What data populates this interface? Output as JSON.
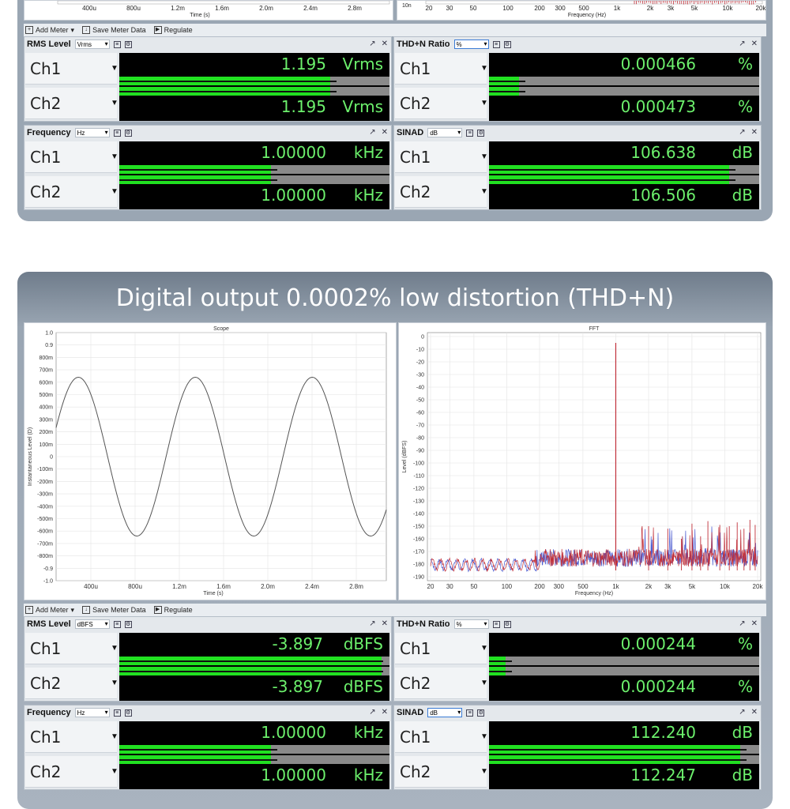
{
  "headline": "Digital output 0.0002% low distortion (THD+N)",
  "colors": {
    "meter_text": "#6cf06c",
    "bar_green": "#21e021",
    "trace_red": "#c0303a",
    "trace_blue": "#4a5ad0"
  },
  "top": {
    "scope_ticks": [
      "400u",
      "800u",
      "1.2m",
      "1.6m",
      "2.0m",
      "2.4m",
      "2.8m"
    ],
    "scope_xlabel": "Time (s)",
    "fft_ticks": [
      "20",
      "30",
      "50",
      "100",
      "200",
      "300",
      "500",
      "1k",
      "2k",
      "3k",
      "5k",
      "10k",
      "20k"
    ],
    "fft_xlabel": "Frequency (Hz)",
    "fft_corner_label": "10n",
    "toolbar": {
      "add_meter": "Add Meter",
      "save_meter_data": "Save Meter Data",
      "regulate": "Regulate"
    },
    "rms": {
      "title": "RMS Level",
      "unit_select": "Vrms",
      "ch1_label": "Ch1",
      "ch2_label": "Ch2",
      "ch1_value": "1.195",
      "ch2_value": "1.195",
      "unit": "Vrms",
      "ch1_level": 0.78,
      "ch2_level": 0.78
    },
    "thdn": {
      "title": "THD+N Ratio",
      "unit_select": "%",
      "ch1_label": "Ch1",
      "ch2_label": "Ch2",
      "ch1_value": "0.000466",
      "ch2_value": "0.000473",
      "unit": "%",
      "ch1_level": 0.11,
      "ch2_level": 0.11
    },
    "freq": {
      "title": "Frequency",
      "unit_select": "Hz",
      "ch1_label": "Ch1",
      "ch2_label": "Ch2",
      "ch1_value": "1.00000",
      "ch2_value": "1.00000",
      "unit": "kHz",
      "ch1_level": 0.56,
      "ch2_level": 0.56
    },
    "sinad": {
      "title": "SINAD",
      "unit_select": "dB",
      "ch1_label": "Ch1",
      "ch2_label": "Ch2",
      "ch1_value": "106.638",
      "ch2_value": "106.506",
      "unit": "dB",
      "ch1_level": 0.89,
      "ch2_level": 0.89
    }
  },
  "bottom": {
    "scope": {
      "title": "Scope",
      "ylabel": "Instantaneous Level (D)",
      "xlabel": "Time (s)",
      "yticks": [
        "1.0",
        "0.9",
        "800m",
        "700m",
        "600m",
        "500m",
        "400m",
        "300m",
        "200m",
        "100m",
        "0",
        "-100m",
        "-200m",
        "-300m",
        "-400m",
        "-500m",
        "-600m",
        "-700m",
        "-800m",
        "-0.9",
        "-1.0"
      ],
      "xticks": [
        "400u",
        "800u",
        "1.2m",
        "1.6m",
        "2.0m",
        "2.4m",
        "2.8m"
      ]
    },
    "fft": {
      "title": "FFT",
      "ylabel": "Level (dBFS)",
      "xlabel": "Frequency (Hz)",
      "yticks": [
        "0",
        "-10",
        "-20",
        "-30",
        "-40",
        "-50",
        "-60",
        "-70",
        "-80",
        "-90",
        "-100",
        "-110",
        "-120",
        "-130",
        "-140",
        "-150",
        "-160",
        "-170",
        "-180",
        "-190"
      ],
      "xticks": [
        "20",
        "30",
        "50",
        "100",
        "200",
        "300",
        "500",
        "1k",
        "2k",
        "3k",
        "5k",
        "10k",
        "20k"
      ]
    },
    "toolbar": {
      "add_meter": "Add Meter",
      "save_meter_data": "Save Meter Data",
      "regulate": "Regulate"
    },
    "rms": {
      "title": "RMS Level",
      "unit_select": "dBFS",
      "ch1_label": "Ch1",
      "ch2_label": "Ch2",
      "ch1_value": "-3.897",
      "ch2_value": "-3.897",
      "unit": "dBFS",
      "ch1_level": 0.97,
      "ch2_level": 0.97
    },
    "thdn": {
      "title": "THD+N Ratio",
      "unit_select": "%",
      "ch1_label": "Ch1",
      "ch2_label": "Ch2",
      "ch1_value": "0.000244",
      "ch2_value": "0.000244",
      "unit": "%",
      "ch1_level": 0.06,
      "ch2_level": 0.06
    },
    "freq": {
      "title": "Frequency",
      "unit_select": "Hz",
      "ch1_label": "Ch1",
      "ch2_label": "Ch2",
      "ch1_value": "1.00000",
      "ch2_value": "1.00000",
      "unit": "kHz",
      "ch1_level": 0.56,
      "ch2_level": 0.56
    },
    "sinad": {
      "title": "SINAD",
      "unit_select": "dB",
      "ch1_label": "Ch1",
      "ch2_label": "Ch2",
      "ch1_value": "112.240",
      "ch2_value": "112.247",
      "unit": "dB",
      "ch1_level": 0.93,
      "ch2_level": 0.93
    }
  }
}
